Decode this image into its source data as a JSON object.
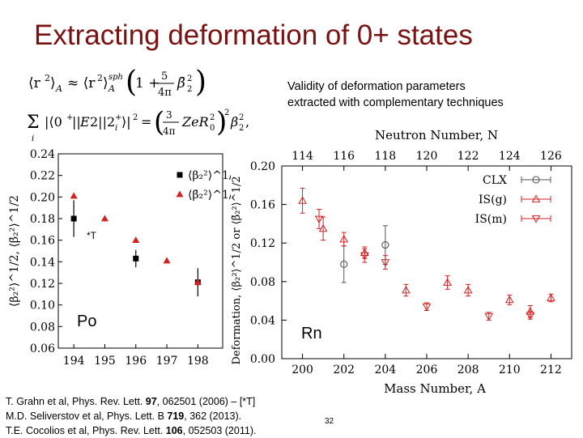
{
  "slide": {
    "title": "Extracting deformation of 0+ states",
    "page_number": "32"
  },
  "equations": {
    "eq1": "⟨r²⟩_A ≈ ⟨r²⟩_A^sph (1 + (5/4π) β̄₂²)",
    "eq2": "Σᵢ |⟨0⁺‖E2‖2ᵢ⁺⟩|² = (3/4π Z e R₀²)² β₂²,"
  },
  "validity_note": {
    "line1": "Validity of deformation parameters",
    "line2": "extracted with complementary techniques"
  },
  "labels": {
    "po": "Po",
    "rn": "Rn",
    "star": "*T"
  },
  "references": [
    {
      "pre": "T. Grahn et al, Phys. Rev. Lett. ",
      "vol": "97",
      "post": ", 062501 (2006) – [*T]"
    },
    {
      "pre": "M.D. Seliverstov et al, Phys. Lett. B ",
      "vol": "719",
      "post": ", 362 (2013)."
    },
    {
      "pre": "T.E. Cocolios et al, Phys. Rev. Lett. ",
      "vol": "106",
      "post": ", 052503 (2011)."
    }
  ],
  "chart_data": [
    {
      "type": "scatter",
      "title": "",
      "xlabel": "",
      "ylabel": "⟨β₂²⟩^1/2, ⟨β̄₂²⟩^1/2",
      "xlim": [
        193.5,
        198.8
      ],
      "ylim": [
        0.06,
        0.24
      ],
      "x_ticks": [
        "194",
        "195",
        "196",
        "197",
        "198"
      ],
      "y_ticks": [
        "0.06",
        "0.08",
        "0.10",
        "0.12",
        "0.14",
        "0.16",
        "0.18",
        "0.20",
        "0.22",
        "0.24"
      ],
      "legend": [
        "⟨β₂²⟩^1/2",
        "⟨β̄₂²⟩^1/2"
      ],
      "legend_placement": "right",
      "series": [
        {
          "name": "⟨β₂²⟩^1/2",
          "color": "#000000",
          "marker": "square",
          "points": [
            {
              "x": 194,
              "y": 0.18,
              "err": 0.017
            },
            {
              "x": 196,
              "y": 0.143,
              "err": 0.008
            },
            {
              "x": 198,
              "y": 0.121,
              "err": 0.013
            }
          ]
        },
        {
          "name": "⟨β̄₂²⟩^1/2",
          "color": "#d42020",
          "marker": "triangle",
          "points": [
            {
              "x": 194,
              "y": 0.201
            },
            {
              "x": 195,
              "y": 0.18
            },
            {
              "x": 196,
              "y": 0.16
            },
            {
              "x": 197,
              "y": 0.141
            },
            {
              "x": 198,
              "y": 0.121
            }
          ]
        }
      ]
    },
    {
      "type": "scatter",
      "title": "",
      "xlabel": "Mass Number, A",
      "x2label": "Neutron Number, N",
      "ylabel": "Deformation, ⟨β₂²⟩^1/2 or ⟨β̄₂²⟩^1/2",
      "xlim": [
        199,
        213
      ],
      "ylim": [
        0.0,
        0.2
      ],
      "x_ticks": [
        "200",
        "202",
        "204",
        "206",
        "208",
        "210",
        "212"
      ],
      "x2_ticks": [
        "114",
        "116",
        "118",
        "120",
        "122",
        "124",
        "126"
      ],
      "y_ticks": [
        "0.00",
        "0.04",
        "0.08",
        "0.12",
        "0.16",
        "0.20"
      ],
      "legend": [
        "CLX",
        "IS(g)",
        "IS(m)"
      ],
      "legend_placement": "top-right",
      "series": [
        {
          "name": "CLX",
          "color": "#555555",
          "marker": "circle",
          "points": [
            {
              "x": 202,
              "y": 0.098,
              "err": 0.019
            },
            {
              "x": 204,
              "y": 0.118,
              "err": 0.02
            }
          ]
        },
        {
          "name": "IS(g)",
          "color": "#d42020",
          "marker": "triangle",
          "points": [
            {
              "x": 200,
              "y": 0.164,
              "err": 0.013
            },
            {
              "x": 201,
              "y": 0.135,
              "err": 0.012
            },
            {
              "x": 202,
              "y": 0.124,
              "err": 0.007
            },
            {
              "x": 203,
              "y": 0.11,
              "err": 0.006
            },
            {
              "x": 205,
              "y": 0.071,
              "err": 0.006
            },
            {
              "x": 207,
              "y": 0.079,
              "err": 0.007
            },
            {
              "x": 208,
              "y": 0.071,
              "err": 0.006
            },
            {
              "x": 210,
              "y": 0.061,
              "err": 0.005
            },
            {
              "x": 211,
              "y": 0.049,
              "err": 0.006
            },
            {
              "x": 212,
              "y": 0.063,
              "err": 0.004
            }
          ]
        },
        {
          "name": "IS(m)",
          "color": "#d42020",
          "marker": "triangle-down",
          "points": [
            {
              "x": 200.8,
              "y": 0.145,
              "err": 0.01
            },
            {
              "x": 203,
              "y": 0.107,
              "err": 0.007
            },
            {
              "x": 204,
              "y": 0.1,
              "err": 0.007
            },
            {
              "x": 206,
              "y": 0.054,
              "err": 0.004
            },
            {
              "x": 209,
              "y": 0.044,
              "err": 0.004
            },
            {
              "x": 211,
              "y": 0.045,
              "err": 0.004
            }
          ]
        }
      ]
    }
  ]
}
